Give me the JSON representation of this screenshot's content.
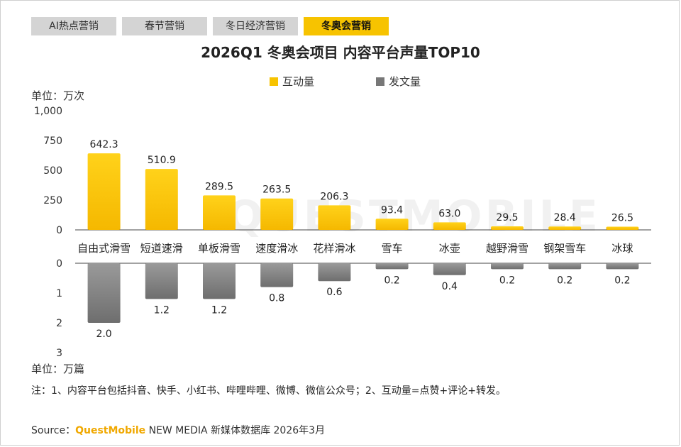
{
  "tabs": [
    {
      "label": "AI热点营销",
      "active": false
    },
    {
      "label": "春节营销",
      "active": false
    },
    {
      "label": "冬日经济营销",
      "active": false
    },
    {
      "label": "冬奥会营销",
      "active": true
    }
  ],
  "unit_top": "单位：万次",
  "unit_bottom": "单位：万篇",
  "watermark": "QUESTMOBILE",
  "note": "注：1、内容平台包括抖音、快手、小红书、哔哩哔哩、微博、微信公众号；2、互动量=点赞+评论+转发。",
  "source": {
    "prefix": "Source：",
    "brand": "QuestMobile",
    "rest": " NEW MEDIA 新媒体数据库 2026年3月"
  },
  "colors": {
    "accent": "#f7c300",
    "gray": "#888888"
  },
  "chart_data": {
    "type": "bar",
    "title": "2026Q1 冬奥会项目 内容平台声量TOP10",
    "categories": [
      "自由式滑雪",
      "短道速滑",
      "单板滑雪",
      "速度滑冰",
      "花样滑冰",
      "雪车",
      "冰壶",
      "越野滑雪",
      "钢架雪车",
      "冰球"
    ],
    "series": [
      {
        "name": "互动量",
        "values": [
          642.3,
          510.9,
          289.5,
          263.5,
          206.3,
          93.4,
          63.0,
          29.5,
          28.4,
          26.5
        ],
        "color": "#f7c300",
        "labels": [
          "642.3",
          "510.9",
          "289.5",
          "263.5",
          "206.3",
          "93.4",
          "63.0",
          "29.5",
          "28.4",
          "26.5"
        ]
      },
      {
        "name": "发文量",
        "values": [
          2.0,
          1.2,
          1.2,
          0.8,
          0.6,
          0.2,
          0.4,
          0.2,
          0.2,
          0.2
        ],
        "color": "#888888",
        "labels": [
          "2.0",
          "1.2",
          "1.2",
          "0.8",
          "0.6",
          "0.2",
          "0.4",
          "0.2",
          "0.2",
          "0.2"
        ]
      }
    ],
    "top_axis": {
      "ylim": [
        0,
        1000
      ],
      "ticks": [
        "0",
        "250",
        "500",
        "750",
        "1,000"
      ],
      "tick_values": [
        0,
        250,
        500,
        750,
        1000
      ]
    },
    "bottom_axis": {
      "ylim": [
        0,
        3
      ],
      "ticks": [
        "0",
        "1",
        "2",
        "3"
      ],
      "tick_values": [
        0,
        1,
        2,
        3
      ]
    },
    "legend": "top-center",
    "grid": false
  }
}
